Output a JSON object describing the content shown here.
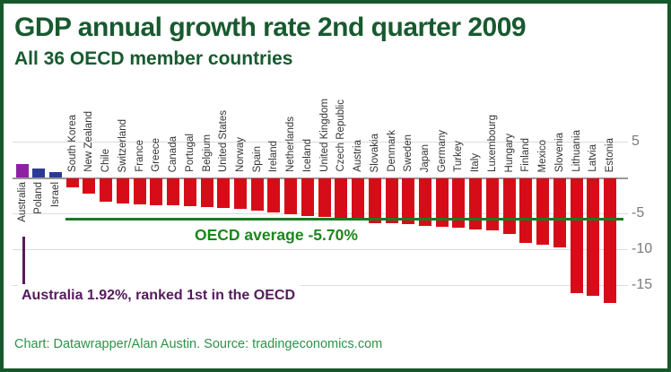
{
  "header": {
    "title": "GDP annual growth rate 2nd quarter 2009",
    "subtitle": "All 36 OECD member countries"
  },
  "footer": {
    "credit": "Chart: Datawrapper/Alan Austin. Source: tradingeconomics.com"
  },
  "colors": {
    "border": "#15582b",
    "title_text": "#175a2f",
    "bar_negative": "#d60d18",
    "bar_positive_australia": "#8c22a2",
    "bar_positive_other": "#2d3a94",
    "oecd_line": "#187a22",
    "oecd_text": "#1c871c",
    "callout_purple": "#571a5e",
    "axis_tick_text": "#7a7a7a",
    "country_label_text": "#333333",
    "gridline": "#dcdcdc",
    "baseline": "#989898",
    "footer_text": "#2e9246"
  },
  "chart_data": {
    "type": "bar",
    "title": "GDP annual growth rate 2nd quarter 2009",
    "subtitle": "All 36 OECD member countries",
    "xlabel": "",
    "ylabel": "",
    "ylim": [
      -17.5,
      5
    ],
    "grid": true,
    "y_ticks": [
      5,
      -5,
      -10,
      -15
    ],
    "y_gridlines": [
      5,
      0,
      -5,
      -10,
      -15
    ],
    "categories": [
      "Australia",
      "Poland",
      "Israel",
      "South Korea",
      "New Zealand",
      "Chile",
      "Switzerland",
      "France",
      "Greece",
      "Canada",
      "Portugal",
      "Belgium",
      "United States",
      "Norway",
      "Spain",
      "Ireland",
      "Netherlands",
      "Iceland",
      "United Kingdom",
      "Czech Republic",
      "Austria",
      "Slovakia",
      "Denmark",
      "Sweden",
      "Japan",
      "Germany",
      "Turkey",
      "Italy",
      "Luxembourg",
      "Hungary",
      "Finland",
      "Mexico",
      "Slovenia",
      "Lithuania",
      "Latvia",
      "Estonia"
    ],
    "values": [
      1.92,
      1.2,
      0.8,
      -1.2,
      -2.1,
      -3.2,
      -3.5,
      -3.6,
      -3.7,
      -3.8,
      -3.9,
      -4.0,
      -4.1,
      -4.3,
      -4.5,
      -4.7,
      -5.0,
      -5.2,
      -5.4,
      -5.6,
      -5.9,
      -6.2,
      -6.3,
      -6.4,
      -6.6,
      -6.7,
      -6.9,
      -7.1,
      -7.3,
      -7.8,
      -9.0,
      -9.2,
      -9.6,
      -16.0,
      -16.4,
      -17.4
    ],
    "bar_colors": {
      "Australia": "#8c22a2",
      "Poland": "#2d3a94",
      "Israel": "#2d3a94",
      "default": "#d60d18"
    },
    "oecd_average": {
      "value": -5.7,
      "label": "OECD average -5.70%"
    },
    "annotation": {
      "text": "Australia 1.92%, ranked 1st in the OECD"
    },
    "legend": null
  }
}
